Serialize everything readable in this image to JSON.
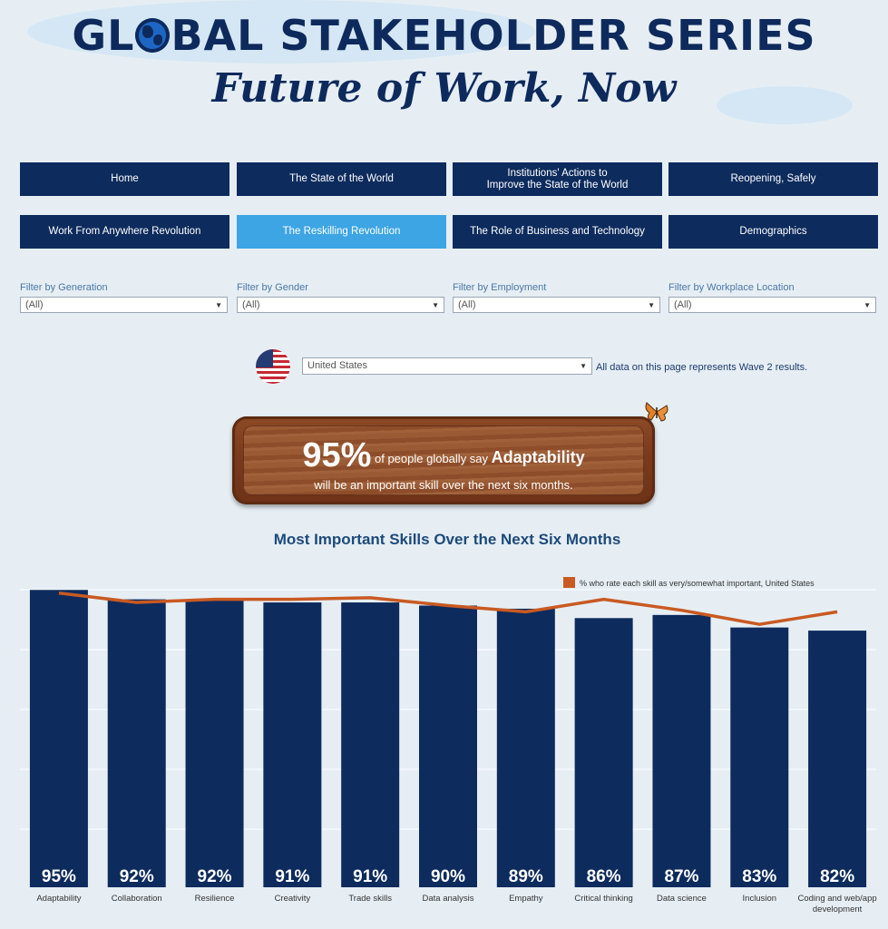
{
  "header": {
    "title_part1": "GL",
    "title_part2": "BAL STAKEHOLDER SERIES",
    "subtitle": "Future of Work, Now"
  },
  "nav": {
    "items": [
      {
        "label": "Home",
        "active": false
      },
      {
        "label": "The State of the World",
        "active": false
      },
      {
        "label": "Institutions' Actions to\nImprove the State of the World",
        "active": false
      },
      {
        "label": "Reopening, Safely",
        "active": false
      },
      {
        "label": "Work From Anywhere Revolution",
        "active": false
      },
      {
        "label": "The Reskilling Revolution",
        "active": true
      },
      {
        "label": "The Role of Business and Technology",
        "active": false
      },
      {
        "label": "Demographics",
        "active": false
      }
    ]
  },
  "filters": [
    {
      "label": "Filter by Generation",
      "value": "(All)"
    },
    {
      "label": "Filter by Gender",
      "value": "(All)"
    },
    {
      "label": "Filter by Employment",
      "value": "(All)"
    },
    {
      "label": "Filter by Workplace Location",
      "value": "(All)"
    }
  ],
  "country": {
    "selected": "United States",
    "note": "All data on this page represents Wave 2 results."
  },
  "callout": {
    "percent": "95%",
    "text_a": " of people globally say ",
    "skill": "Adaptability",
    "text_b": "will be an important skill over the next six months."
  },
  "chart_title": "Most Important Skills Over the Next Six Months",
  "chart_data": {
    "type": "bar",
    "categories": [
      "Adaptability",
      "Collaboration",
      "Resilience",
      "Creativity",
      "Trade skills",
      "Data analysis",
      "Empathy",
      "Critical thinking",
      "Data science",
      "Inclusion",
      "Coding and web/app development"
    ],
    "category_lines": [
      [
        "Adaptability"
      ],
      [
        "Collaboration"
      ],
      [
        "Resilience"
      ],
      [
        "Creativity"
      ],
      [
        "Trade skills"
      ],
      [
        "Data analysis"
      ],
      [
        "Empathy"
      ],
      [
        "Critical thinking"
      ],
      [
        "Data science"
      ],
      [
        "Inclusion"
      ],
      [
        "Coding and web/app",
        "development"
      ]
    ],
    "series": [
      {
        "kind": "bar",
        "values": [
          95,
          92,
          92,
          91,
          91,
          90,
          89,
          86,
          87,
          83,
          82
        ],
        "labels": [
          "95%",
          "92%",
          "92%",
          "91%",
          "91%",
          "90%",
          "89%",
          "86%",
          "87%",
          "83%",
          "82%"
        ],
        "color": "#0d2b5d"
      },
      {
        "name": "% who rate each skill as very/somewhat important, United States",
        "kind": "line",
        "values": [
          94,
          91,
          92,
          92,
          92.5,
          90,
          88,
          92,
          88.5,
          84,
          88
        ],
        "color": "#c95a22"
      }
    ],
    "legend": "top-right",
    "grid": true
  }
}
